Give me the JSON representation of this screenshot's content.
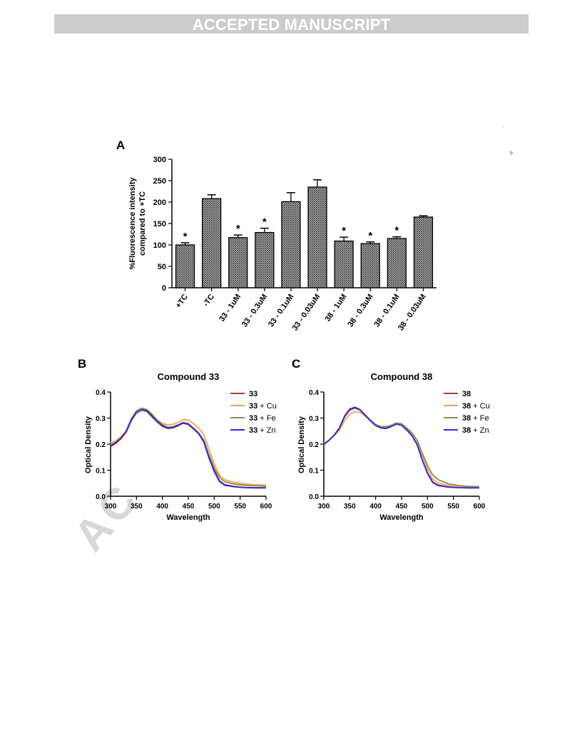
{
  "banner": {
    "text": "ACCEPTED MANUSCRIPT"
  },
  "watermark": {
    "text": "AC"
  },
  "panels": {
    "a": "A",
    "b": "B",
    "c": "C"
  },
  "chart_data": [
    {
      "type": "bar",
      "panel": "A",
      "ylabel_lines": [
        "%Fluorescence intensity",
        "compared to +TC"
      ],
      "ylim": [
        0,
        300
      ],
      "yticks": [
        0,
        50,
        100,
        150,
        200,
        250,
        300
      ],
      "categories": [
        "+TC",
        "-TC",
        "33 - 1uM",
        "33 - 0.3uM",
        "33 - 0.1uM",
        "33 - 0.03uM",
        "38 - 1uM",
        "38 - 0.3uM",
        "38 - 0.1uM",
        "38 - 0.03uM"
      ],
      "values": [
        100,
        208,
        117,
        129,
        201,
        235,
        109,
        103,
        115,
        165
      ],
      "errors": [
        5,
        9,
        6,
        10,
        21,
        17,
        9,
        4,
        4,
        3
      ],
      "significant": [
        "*",
        "",
        "*",
        "*",
        "",
        "",
        "*",
        "*",
        "*",
        ""
      ],
      "bar_fill": "#5a5a5a"
    },
    {
      "type": "line",
      "panel": "B",
      "title": "Compound 33",
      "xlabel": "Wavelength",
      "ylabel": "Optical Density",
      "xlim": [
        300,
        600
      ],
      "ylim": [
        0.0,
        0.4
      ],
      "xticks": [
        300,
        350,
        400,
        450,
        500,
        550,
        600
      ],
      "yticks": [
        "0.0",
        "0.1",
        "0.2",
        "0.3",
        "0.4"
      ],
      "legend_position": "top-right",
      "x": [
        300,
        310,
        320,
        330,
        340,
        350,
        360,
        370,
        380,
        390,
        400,
        410,
        420,
        430,
        440,
        450,
        460,
        470,
        480,
        490,
        500,
        510,
        520,
        540,
        560,
        580,
        600
      ],
      "series": [
        {
          "name_bold": "33",
          "name_rest": "",
          "color": "#c0392b",
          "values": [
            0.19,
            0.203,
            0.22,
            0.245,
            0.29,
            0.318,
            0.33,
            0.325,
            0.305,
            0.285,
            0.268,
            0.26,
            0.262,
            0.27,
            0.28,
            0.275,
            0.258,
            0.24,
            0.21,
            0.15,
            0.1,
            0.06,
            0.045,
            0.037,
            0.034,
            0.033,
            0.033
          ]
        },
        {
          "name_bold": "33",
          "name_rest": " + Cu",
          "color": "#f5a35c",
          "values": [
            0.205,
            0.213,
            0.228,
            0.25,
            0.292,
            0.32,
            0.332,
            0.328,
            0.31,
            0.292,
            0.28,
            0.274,
            0.276,
            0.283,
            0.294,
            0.293,
            0.278,
            0.262,
            0.236,
            0.18,
            0.125,
            0.082,
            0.063,
            0.052,
            0.047,
            0.044,
            0.043
          ]
        },
        {
          "name_bold": "33",
          "name_rest": " + Fe",
          "color": "#8b8d4e",
          "values": [
            0.197,
            0.208,
            0.225,
            0.25,
            0.298,
            0.328,
            0.338,
            0.333,
            0.315,
            0.292,
            0.275,
            0.265,
            0.267,
            0.274,
            0.283,
            0.279,
            0.262,
            0.244,
            0.216,
            0.16,
            0.11,
            0.072,
            0.056,
            0.046,
            0.042,
            0.04,
            0.039
          ]
        },
        {
          "name_bold": "33",
          "name_rest": " + Zn",
          "color": "#2b2bd9",
          "values": [
            0.193,
            0.205,
            0.222,
            0.248,
            0.292,
            0.322,
            0.333,
            0.328,
            0.308,
            0.287,
            0.27,
            0.262,
            0.263,
            0.272,
            0.282,
            0.277,
            0.259,
            0.24,
            0.208,
            0.146,
            0.095,
            0.057,
            0.042,
            0.036,
            0.033,
            0.032,
            0.032
          ]
        }
      ]
    },
    {
      "type": "line",
      "panel": "C",
      "title": "Compound 38",
      "xlabel": "Wavelength",
      "ylabel": "Optical Density",
      "xlim": [
        300,
        600
      ],
      "ylim": [
        0.0,
        0.4
      ],
      "xticks": [
        300,
        350,
        400,
        450,
        500,
        550,
        600
      ],
      "yticks": [
        "0.0",
        "0.1",
        "0.2",
        "0.3",
        "0.4"
      ],
      "legend_position": "top-right",
      "x": [
        300,
        310,
        320,
        330,
        340,
        350,
        360,
        370,
        380,
        390,
        400,
        410,
        420,
        430,
        440,
        450,
        460,
        470,
        480,
        490,
        500,
        510,
        520,
        540,
        560,
        580,
        600
      ],
      "series": [
        {
          "name_bold": "38",
          "name_rest": "",
          "color": "#c0392b",
          "values": [
            0.2,
            0.215,
            0.235,
            0.262,
            0.308,
            0.335,
            0.342,
            0.333,
            0.312,
            0.29,
            0.272,
            0.263,
            0.262,
            0.268,
            0.278,
            0.274,
            0.256,
            0.234,
            0.2,
            0.14,
            0.09,
            0.055,
            0.043,
            0.036,
            0.034,
            0.033,
            0.033
          ]
        },
        {
          "name_bold": "38",
          "name_rest": " + Cu",
          "color": "#f5a35c",
          "values": [
            0.202,
            0.216,
            0.232,
            0.252,
            0.29,
            0.315,
            0.325,
            0.322,
            0.308,
            0.292,
            0.276,
            0.268,
            0.268,
            0.272,
            0.279,
            0.277,
            0.262,
            0.243,
            0.213,
            0.158,
            0.105,
            0.066,
            0.051,
            0.041,
            0.037,
            0.035,
            0.035
          ]
        },
        {
          "name_bold": "38",
          "name_rest": " + Fe",
          "color": "#8b8d4e",
          "values": [
            0.2,
            0.215,
            0.234,
            0.26,
            0.304,
            0.33,
            0.338,
            0.331,
            0.312,
            0.292,
            0.275,
            0.267,
            0.266,
            0.272,
            0.281,
            0.278,
            0.262,
            0.243,
            0.215,
            0.165,
            0.118,
            0.082,
            0.064,
            0.048,
            0.041,
            0.038,
            0.037
          ]
        },
        {
          "name_bold": "38",
          "name_rest": " + Zn",
          "color": "#2b2bd9",
          "values": [
            0.199,
            0.214,
            0.234,
            0.261,
            0.306,
            0.333,
            0.34,
            0.331,
            0.31,
            0.289,
            0.271,
            0.262,
            0.26,
            0.267,
            0.277,
            0.272,
            0.254,
            0.232,
            0.198,
            0.138,
            0.088,
            0.053,
            0.041,
            0.035,
            0.033,
            0.032,
            0.032
          ]
        }
      ]
    }
  ]
}
